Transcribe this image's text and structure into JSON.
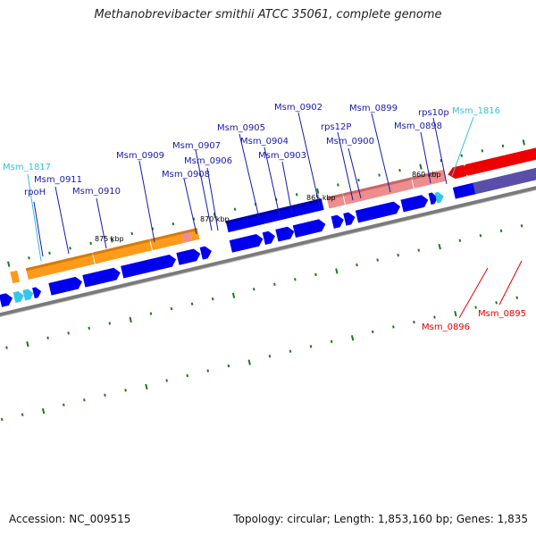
{
  "title": "Methanobrevibacter smithii ATCC 35061, complete genome",
  "footer": {
    "accession": "Accession: NC_009515",
    "summary": "Topology: circular; Length: 1,853,160 bp; Genes: 1,835"
  },
  "colors": {
    "blue_gene": "#0000ee",
    "orange_gene": "#ff9a1a",
    "pink_gene": "#ef8c8c",
    "red_gene": "#ee0000",
    "cyan_gene": "#33c8e8",
    "gray_gene": "#aaaaaa",
    "label_blue": "#1a1aa8",
    "label_cyan": "#33bfdc",
    "label_red": "#e60000",
    "backbone": "#7a7a7a",
    "tick": "#1b7a1b"
  },
  "kbp_labels": [
    "875 kbp",
    "870 kbp",
    "865 kbp",
    "860 kbp"
  ],
  "gene_labels": [
    {
      "text": "Msm_1817",
      "kind": "cyan"
    },
    {
      "text": "rpoH",
      "kind": "blue"
    },
    {
      "text": "Msm_0911",
      "kind": "blue"
    },
    {
      "text": "Msm_0910",
      "kind": "blue"
    },
    {
      "text": "Msm_0909",
      "kind": "blue"
    },
    {
      "text": "Msm_0908",
      "kind": "blue"
    },
    {
      "text": "Msm_0907",
      "kind": "blue"
    },
    {
      "text": "Msm_0906",
      "kind": "blue"
    },
    {
      "text": "Msm_0905",
      "kind": "blue"
    },
    {
      "text": "Msm_0904",
      "kind": "blue"
    },
    {
      "text": "Msm_0903",
      "kind": "blue"
    },
    {
      "text": "Msm_0902",
      "kind": "blue"
    },
    {
      "text": "rps12P",
      "kind": "blue"
    },
    {
      "text": "Msm_0900",
      "kind": "blue"
    },
    {
      "text": "Msm_0899",
      "kind": "blue"
    },
    {
      "text": "Msm_0898",
      "kind": "blue"
    },
    {
      "text": "rps10p",
      "kind": "blue"
    },
    {
      "text": "Msm_1816",
      "kind": "cyan"
    },
    {
      "text": "Msm_0896",
      "kind": "red"
    },
    {
      "text": "Msm_0895",
      "kind": "red"
    }
  ]
}
